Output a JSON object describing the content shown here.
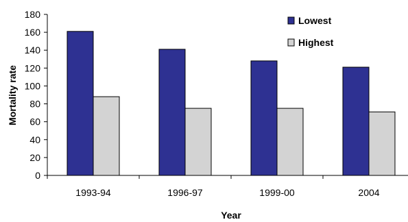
{
  "chart_data": {
    "type": "bar",
    "title": "",
    "xlabel": "Year",
    "ylabel": "Mortality rate",
    "categories": [
      "1993-94",
      "1996-97",
      "1999-00",
      "2004"
    ],
    "ylim": [
      0,
      180
    ],
    "yticks": [
      "0",
      "20",
      "40",
      "60",
      "80",
      "100",
      "120",
      "140",
      "160",
      "180"
    ],
    "grid": false,
    "legend_position": "top-right",
    "series": [
      {
        "name": "Lowest",
        "color": "#2e3192",
        "values": [
          161,
          141,
          128,
          121
        ]
      },
      {
        "name": "Highest",
        "color": "#d3d3d3",
        "values": [
          88,
          75,
          75,
          71
        ]
      }
    ]
  }
}
